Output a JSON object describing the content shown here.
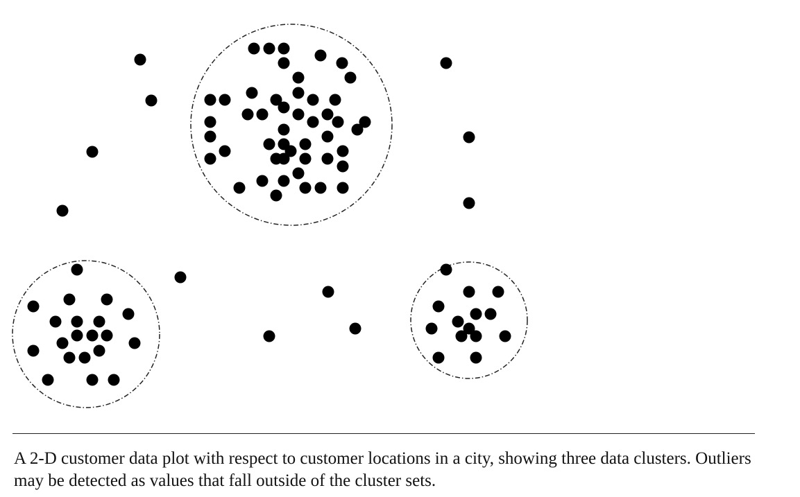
{
  "caption": {
    "text": "A 2-D customer data plot with respect to customer locations in a city, showing three data clusters. Outliers may be detected as values that fall outside of the cluster sets."
  },
  "colors": {
    "point": "#000000",
    "boundary": "#222222",
    "caption_text": "#111111",
    "rule": "#222222"
  }
}
